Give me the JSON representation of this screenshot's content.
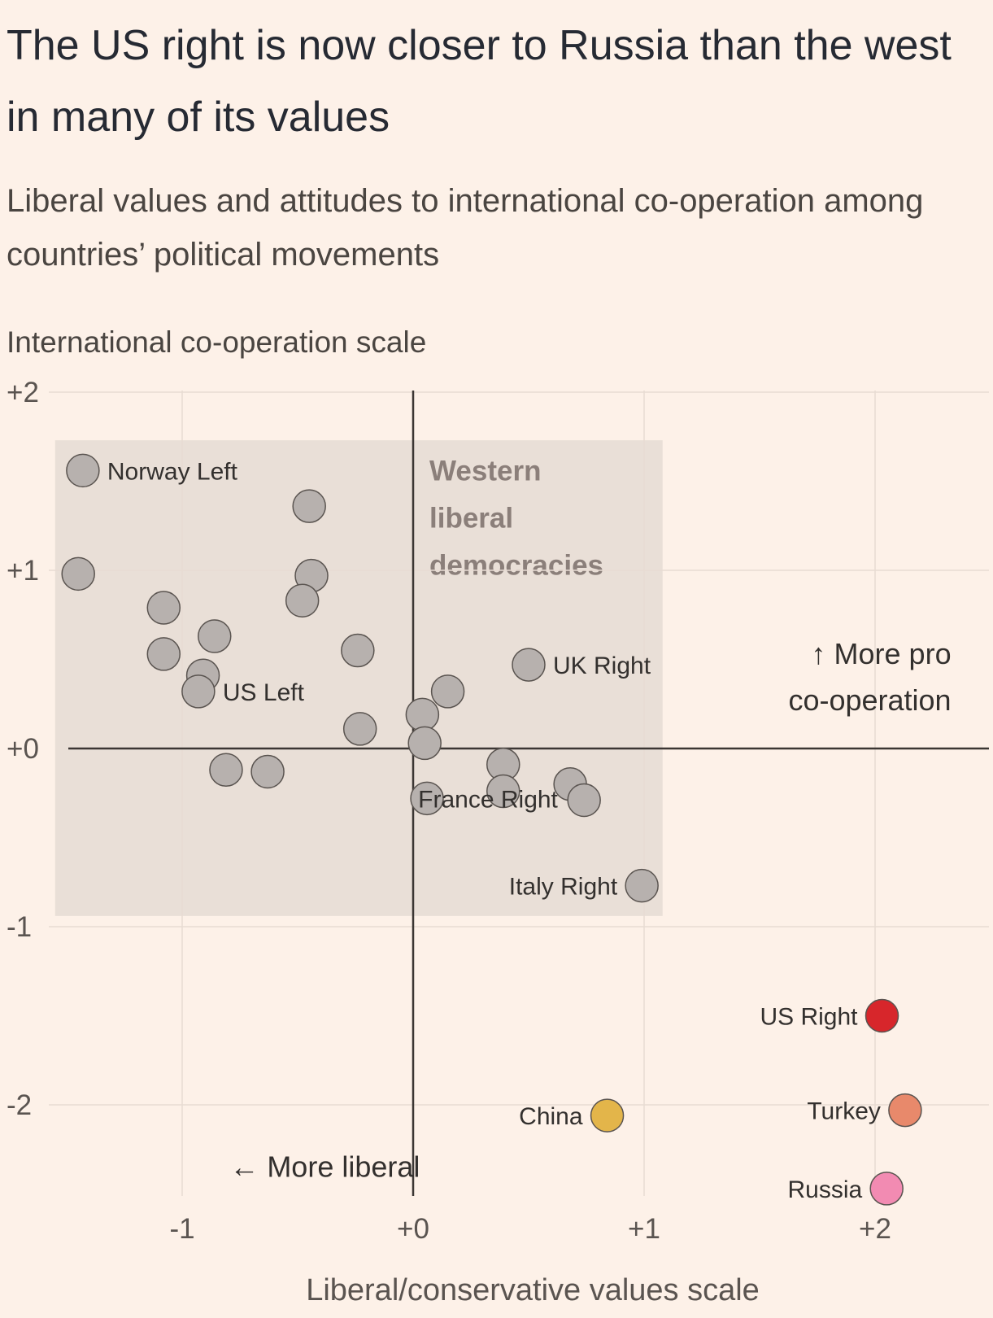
{
  "title": "The US right is now closer to Russia than the west in many of its values",
  "subtitle": "Liberal values and attitudes to international co-operation among countries’ political movements",
  "colors": {
    "background": "#fdf1e8",
    "grid": "#e8dcd3",
    "region": "#e9dfd7",
    "default_point": "#b7b1ae",
    "us_right": "#d7262b",
    "turkey": "#e8896b",
    "china": "#e3b54a",
    "russia": "#f28bb2"
  },
  "chart_data": {
    "type": "scatter",
    "title": "The US right is now closer to Russia than the west in many of its values",
    "subtitle": "Liberal values and attitudes to international co-operation among countries’ political movements",
    "xlabel": "Liberal/conservative values scale",
    "ylabel": "International co-operation scale",
    "xlim": [
      -1.75,
      2.5
    ],
    "ylim": [
      -2.5,
      2
    ],
    "xticks": [
      -1,
      0,
      1,
      2
    ],
    "xtick_labels": [
      "-1",
      "+0",
      "+1",
      "+2"
    ],
    "yticks": [
      2,
      1,
      0,
      -1,
      -2
    ],
    "ytick_labels": [
      "+2",
      "+1",
      "+0",
      "-1",
      "-2"
    ],
    "grid": true,
    "region": {
      "label": [
        "Western",
        "liberal",
        "democracies"
      ],
      "x_range": [
        -1.55,
        1.08
      ],
      "y_range": [
        -0.94,
        1.73
      ]
    },
    "annotations": [
      {
        "text": "← More liberal",
        "x": 0.1,
        "y": -2.35,
        "anchor": "end"
      },
      {
        "text": "↑ More pro",
        "x": 2.4,
        "y": 0.53,
        "anchor": "end"
      },
      {
        "text": "co-operation",
        "x": 2.4,
        "y": 0.27,
        "anchor": "end"
      }
    ],
    "points": [
      {
        "x": -1.43,
        "y": 1.56,
        "label": "Norway Left",
        "label_side": "right",
        "color": "#b7b1ae"
      },
      {
        "x": -0.45,
        "y": 1.36,
        "label": "",
        "color": "#b7b1ae"
      },
      {
        "x": -1.45,
        "y": 0.98,
        "label": "",
        "color": "#b7b1ae"
      },
      {
        "x": -0.44,
        "y": 0.97,
        "label": "",
        "color": "#b7b1ae"
      },
      {
        "x": -0.48,
        "y": 0.83,
        "label": "",
        "color": "#b7b1ae"
      },
      {
        "x": -1.08,
        "y": 0.79,
        "label": "",
        "color": "#b7b1ae"
      },
      {
        "x": -0.86,
        "y": 0.63,
        "label": "",
        "color": "#b7b1ae"
      },
      {
        "x": -1.08,
        "y": 0.53,
        "label": "",
        "color": "#b7b1ae"
      },
      {
        "x": -0.24,
        "y": 0.55,
        "label": "",
        "color": "#b7b1ae"
      },
      {
        "x": -0.91,
        "y": 0.41,
        "label": "",
        "color": "#b7b1ae"
      },
      {
        "x": -0.93,
        "y": 0.32,
        "label": "US Left",
        "label_side": "right",
        "color": "#b7b1ae"
      },
      {
        "x": 0.15,
        "y": 0.32,
        "label": "",
        "color": "#b7b1ae"
      },
      {
        "x": 0.04,
        "y": 0.19,
        "label": "",
        "color": "#b7b1ae"
      },
      {
        "x": -0.23,
        "y": 0.11,
        "label": "",
        "color": "#b7b1ae"
      },
      {
        "x": 0.05,
        "y": 0.03,
        "label": "",
        "color": "#b7b1ae"
      },
      {
        "x": -0.81,
        "y": -0.12,
        "label": "",
        "color": "#b7b1ae"
      },
      {
        "x": -0.63,
        "y": -0.13,
        "label": "",
        "color": "#b7b1ae"
      },
      {
        "x": 0.39,
        "y": -0.09,
        "label": "",
        "color": "#b7b1ae"
      },
      {
        "x": 0.39,
        "y": -0.24,
        "label": "",
        "color": "#b7b1ae"
      },
      {
        "x": 0.06,
        "y": -0.28,
        "label": "France Right",
        "label_side": "over",
        "color": "#b7b1ae"
      },
      {
        "x": 0.68,
        "y": -0.2,
        "label": "",
        "color": "#b7b1ae"
      },
      {
        "x": 0.74,
        "y": -0.29,
        "label": "",
        "color": "#b7b1ae"
      },
      {
        "x": 0.5,
        "y": 0.47,
        "label": "UK Right",
        "label_side": "right",
        "color": "#b7b1ae"
      },
      {
        "x": 0.99,
        "y": -0.77,
        "label": "Italy Right",
        "label_side": "left",
        "color": "#b7b1ae"
      },
      {
        "x": 2.03,
        "y": -1.5,
        "label": "US Right",
        "label_side": "left",
        "color": "#d7262b"
      },
      {
        "x": 2.13,
        "y": -2.03,
        "label": "Turkey",
        "label_side": "left",
        "color": "#e8896b"
      },
      {
        "x": 0.84,
        "y": -2.06,
        "label": "China",
        "label_side": "left",
        "color": "#e3b54a"
      },
      {
        "x": 2.05,
        "y": -2.47,
        "label": "Russia",
        "label_side": "left",
        "color": "#f28bb2"
      }
    ]
  }
}
